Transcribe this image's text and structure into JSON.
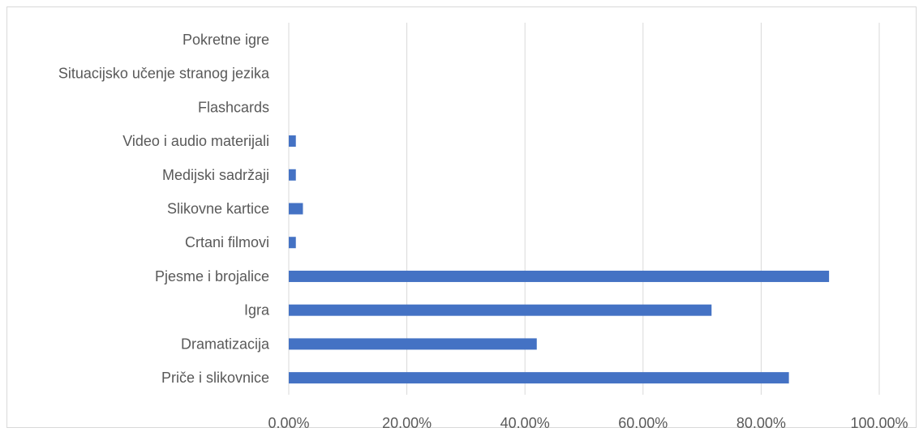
{
  "chart_data": {
    "type": "bar",
    "orientation": "horizontal",
    "title": "",
    "xlabel": "",
    "ylabel": "",
    "categories": [
      "Pokretne igre",
      "Situacijsko učenje stranog jezika",
      "Flashcards",
      "Video i audio materijali",
      "Medijski sadržaji",
      "Slikovne kartice",
      "Crtani filmovi",
      "Pjesme i brojalice",
      "Igra",
      "Dramatizacija",
      "Priče i slikovnice"
    ],
    "values": [
      0.0,
      0.0,
      0.0,
      1.2,
      1.2,
      2.4,
      1.2,
      91.5,
      71.6,
      42.0,
      84.7
    ],
    "xlim": [
      0,
      100
    ],
    "xticks": [
      "0.00%",
      "20.00%",
      "40.00%",
      "60.00%",
      "80.00%",
      "100.00%"
    ],
    "grid": "vertical",
    "legend": "none",
    "bar_color": "#4472c4",
    "grid_color": "#d9d9d9"
  }
}
